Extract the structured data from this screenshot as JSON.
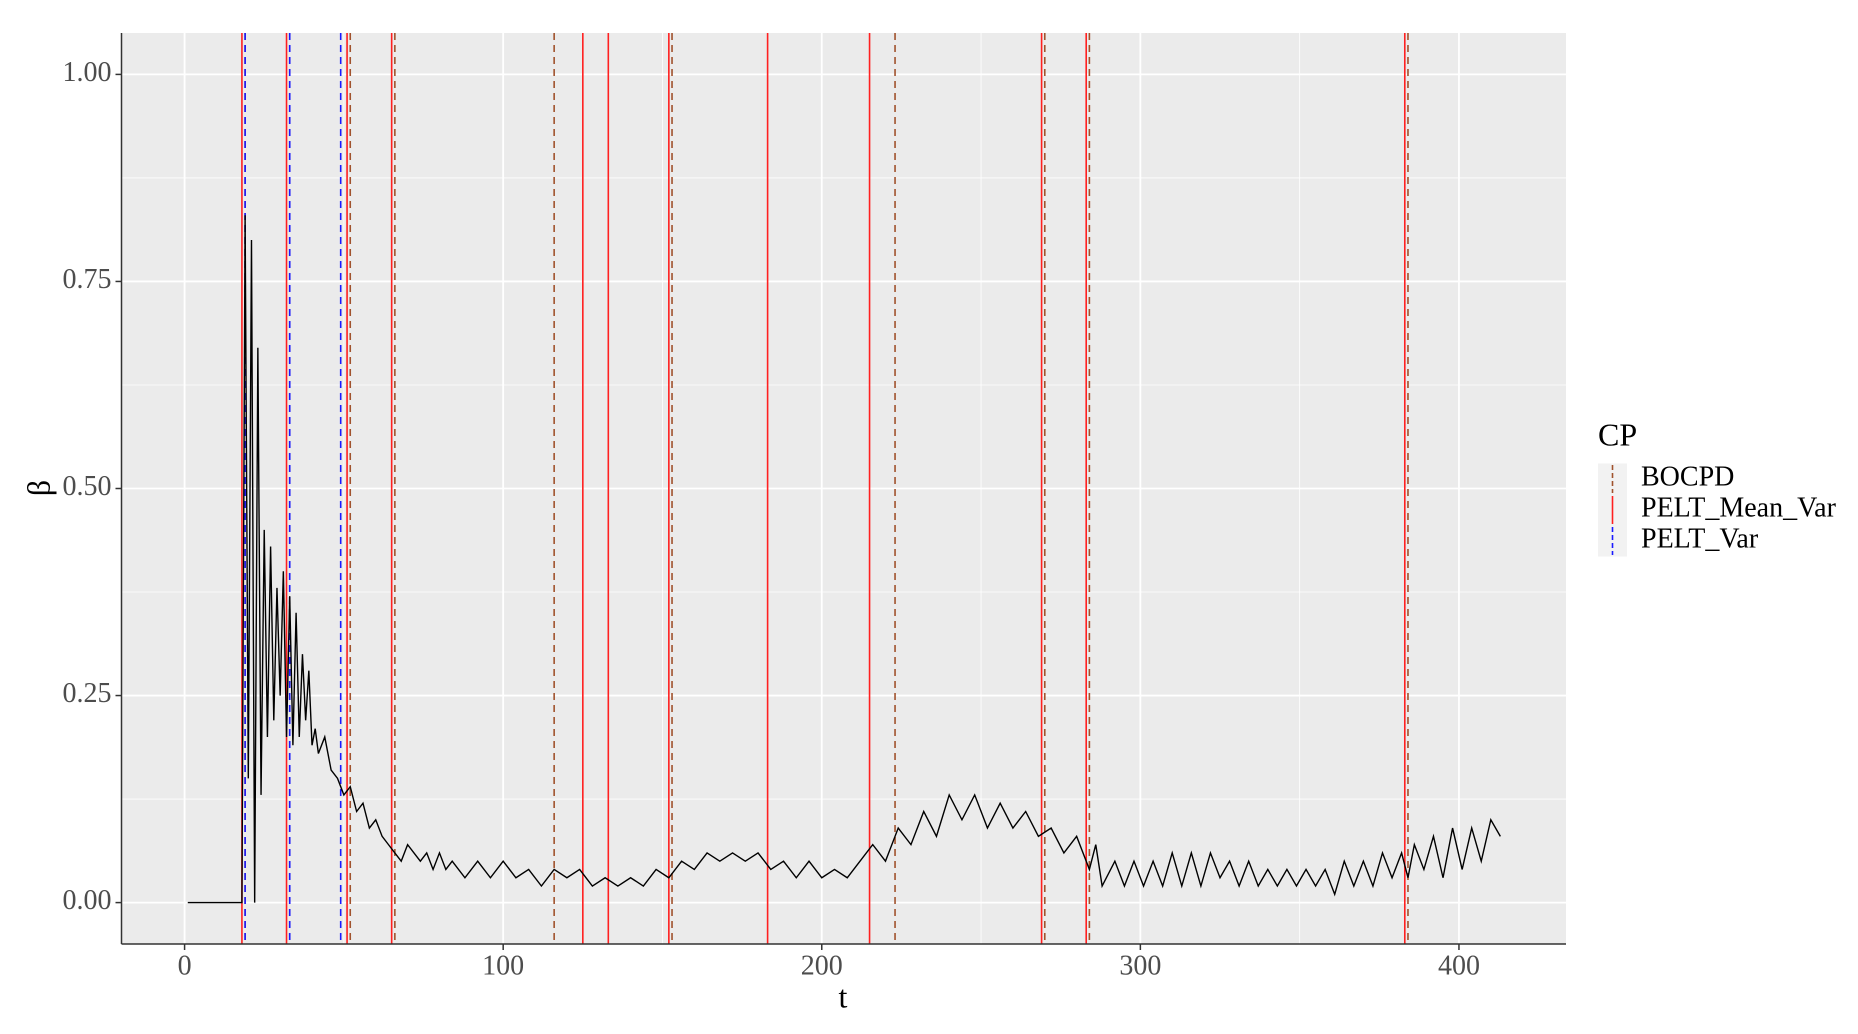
{
  "chart_data": {
    "type": "line",
    "x_label": "t",
    "y_label": "β",
    "x": [
      1,
      18,
      19,
      20,
      21,
      22,
      23,
      24,
      25,
      26,
      27,
      28,
      29,
      30,
      31,
      32,
      33,
      34,
      35,
      36,
      37,
      38,
      39,
      40,
      41,
      42,
      44,
      46,
      48,
      50,
      52,
      54,
      56,
      58,
      60,
      62,
      64,
      66,
      68,
      70,
      72,
      74,
      76,
      78,
      80,
      82,
      84,
      88,
      92,
      96,
      100,
      104,
      108,
      112,
      116,
      120,
      124,
      128,
      132,
      136,
      140,
      144,
      148,
      152,
      156,
      160,
      164,
      168,
      172,
      176,
      180,
      184,
      188,
      192,
      196,
      200,
      204,
      208,
      212,
      216,
      220,
      224,
      228,
      232,
      236,
      240,
      244,
      248,
      252,
      256,
      260,
      264,
      268,
      272,
      276,
      280,
      284,
      286,
      288,
      292,
      295,
      298,
      301,
      304,
      307,
      310,
      313,
      316,
      319,
      322,
      325,
      328,
      331,
      334,
      337,
      340,
      343,
      346,
      349,
      352,
      355,
      358,
      361,
      364,
      367,
      370,
      373,
      376,
      379,
      382,
      384,
      386,
      389,
      392,
      395,
      398,
      401,
      404,
      407,
      410,
      413
    ],
    "values": [
      0,
      0,
      0.83,
      0.15,
      0.8,
      0,
      0.67,
      0.13,
      0.45,
      0.2,
      0.43,
      0.22,
      0.38,
      0.25,
      0.4,
      0.2,
      0.37,
      0.19,
      0.35,
      0.2,
      0.3,
      0.22,
      0.28,
      0.19,
      0.21,
      0.18,
      0.2,
      0.16,
      0.15,
      0.13,
      0.14,
      0.11,
      0.12,
      0.09,
      0.1,
      0.08,
      0.07,
      0.06,
      0.05,
      0.07,
      0.06,
      0.05,
      0.06,
      0.04,
      0.06,
      0.04,
      0.05,
      0.03,
      0.05,
      0.03,
      0.05,
      0.03,
      0.04,
      0.02,
      0.04,
      0.03,
      0.04,
      0.02,
      0.03,
      0.02,
      0.03,
      0.02,
      0.04,
      0.03,
      0.05,
      0.04,
      0.06,
      0.05,
      0.06,
      0.05,
      0.06,
      0.04,
      0.05,
      0.03,
      0.05,
      0.03,
      0.04,
      0.03,
      0.05,
      0.07,
      0.05,
      0.09,
      0.07,
      0.11,
      0.08,
      0.13,
      0.1,
      0.13,
      0.09,
      0.12,
      0.09,
      0.11,
      0.08,
      0.09,
      0.06,
      0.08,
      0.04,
      0.07,
      0.02,
      0.05,
      0.02,
      0.05,
      0.02,
      0.05,
      0.02,
      0.06,
      0.02,
      0.06,
      0.02,
      0.06,
      0.03,
      0.05,
      0.02,
      0.05,
      0.02,
      0.04,
      0.02,
      0.04,
      0.02,
      0.04,
      0.02,
      0.04,
      0.01,
      0.05,
      0.02,
      0.05,
      0.02,
      0.06,
      0.03,
      0.06,
      0.03,
      0.07,
      0.04,
      0.08,
      0.03,
      0.09,
      0.04,
      0.09,
      0.05,
      0.1,
      0.08
    ],
    "color": "#000000",
    "changepoints": {
      "title": "CP",
      "series": [
        {
          "name": "BOCPD",
          "color": "#a0522d",
          "linestyle": "dashed",
          "values": [
            19,
            33,
            52,
            66,
            116,
            153,
            223,
            270,
            284,
            384
          ]
        },
        {
          "name": "PELT_Mean_Var",
          "color": "#ff2020",
          "linestyle": "solid",
          "values": [
            18,
            32,
            51,
            65,
            125,
            133,
            152,
            183,
            215,
            269,
            283,
            383
          ]
        },
        {
          "name": "PELT_Var",
          "color": "#1a1aff",
          "linestyle": "dashed",
          "values": [
            19,
            33,
            49
          ]
        }
      ]
    },
    "xlim": [
      -19.8,
      433.6
    ],
    "xticks": [
      0,
      100,
      200,
      300,
      400
    ],
    "ylim": [
      -0.05,
      1.05
    ],
    "yticks": [
      {
        "value": 0,
        "label": "0.00"
      },
      {
        "value": 0.25,
        "label": "0.25"
      },
      {
        "value": 0.5,
        "label": "0.50"
      },
      {
        "value": 0.75,
        "label": "0.75"
      },
      {
        "value": 1,
        "label": "1.00"
      }
    ],
    "grid": true
  }
}
